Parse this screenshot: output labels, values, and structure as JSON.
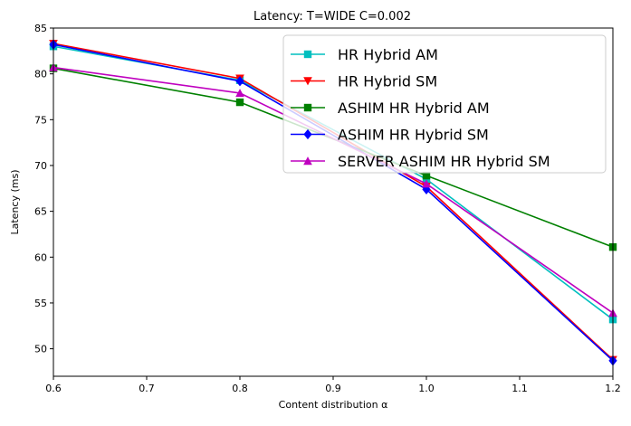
{
  "chart_data": {
    "type": "line",
    "title": "Latency: T=WIDE C=0.002",
    "xlabel": "Content distribution α",
    "ylabel": "Latency (ms)",
    "xlim": [
      0.6,
      1.2
    ],
    "ylim": [
      47,
      85
    ],
    "xticks": [
      0.6,
      0.7,
      0.8,
      0.9,
      1.0,
      1.1,
      1.2
    ],
    "xtick_labels": [
      "0.6",
      "0.7",
      "0.8",
      "0.9",
      "1.0",
      "1.1",
      "1.2"
    ],
    "yticks": [
      50,
      55,
      60,
      65,
      70,
      75,
      80,
      85
    ],
    "ytick_labels": [
      "50",
      "55",
      "60",
      "65",
      "70",
      "75",
      "80",
      "85"
    ],
    "grid": false,
    "legend_position": "top-right",
    "x": [
      0.6,
      0.8,
      1.0,
      1.2
    ],
    "series": [
      {
        "name": "HR Hybrid AM",
        "values": [
          83.0,
          79.3,
          68.5,
          53.2
        ],
        "color": "#00bfbf",
        "marker": "square"
      },
      {
        "name": "HR Hybrid SM",
        "values": [
          83.3,
          79.5,
          67.7,
          48.8
        ],
        "color": "#ff0000",
        "marker": "triangle-down"
      },
      {
        "name": "ASHIM HR Hybrid AM",
        "values": [
          80.6,
          76.9,
          68.9,
          61.1
        ],
        "color": "#008000",
        "marker": "square"
      },
      {
        "name": "ASHIM HR Hybrid SM",
        "values": [
          83.2,
          79.2,
          67.4,
          48.7
        ],
        "color": "#0000ff",
        "marker": "diamond"
      },
      {
        "name": "SERVER ASHIM HR Hybrid SM",
        "values": [
          80.7,
          77.9,
          68.0,
          53.9
        ],
        "color": "#bf00bf",
        "marker": "triangle-up"
      }
    ]
  }
}
